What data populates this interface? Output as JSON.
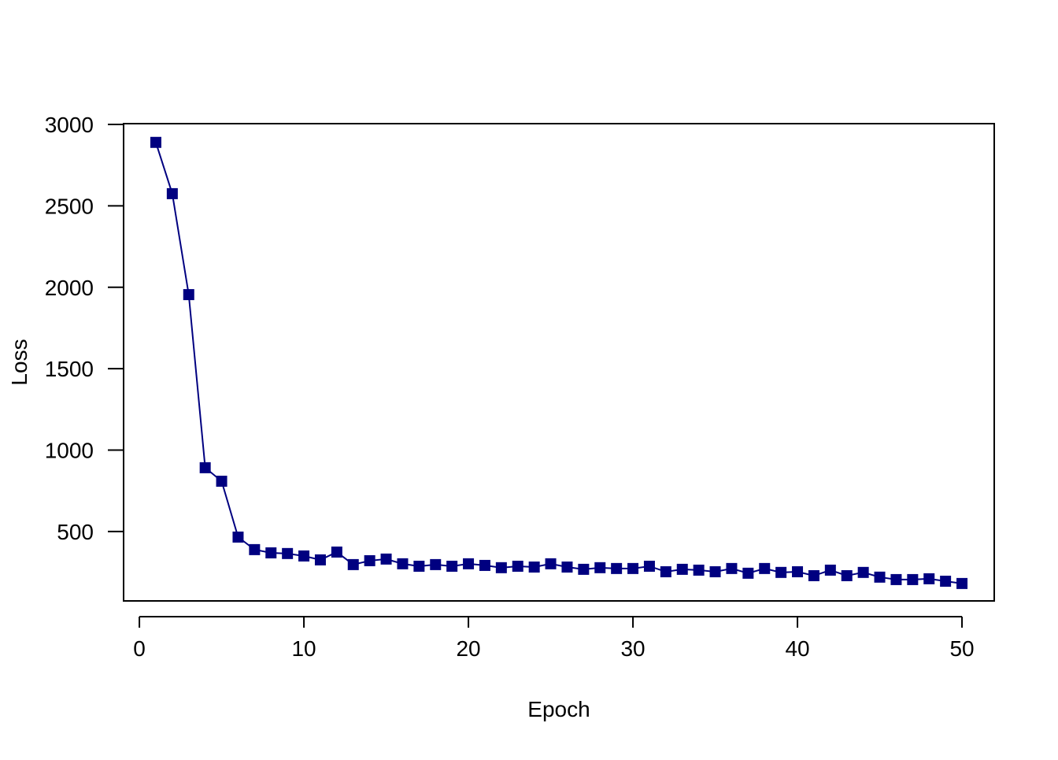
{
  "chart_data": {
    "type": "line",
    "x_label": "Epoch",
    "y_label": "Loss",
    "series": [
      {
        "color": "#000080",
        "x": [
          1,
          2,
          3,
          4,
          5,
          6,
          7,
          8,
          9,
          10,
          11,
          12,
          13,
          14,
          15,
          16,
          17,
          18,
          19,
          20,
          21,
          22,
          23,
          24,
          25,
          26,
          27,
          28,
          29,
          30,
          31,
          32,
          33,
          34,
          35,
          36,
          37,
          38,
          39,
          40,
          41,
          42,
          43,
          44,
          45,
          46,
          47,
          48,
          49,
          50
        ],
        "values": [
          2890,
          2575,
          1955,
          892,
          809,
          466,
          389,
          369,
          365,
          350,
          326,
          374,
          297,
          321,
          331,
          302,
          287,
          297,
          287,
          302,
          292,
          278,
          287,
          282,
          302,
          282,
          268,
          278,
          273,
          273,
          287,
          253,
          268,
          263,
          253,
          273,
          244,
          273,
          249,
          253,
          229,
          263,
          229,
          249,
          220,
          205,
          205,
          210,
          195,
          181
        ]
      }
    ],
    "xlim": [
      -0.96,
      51.96
    ],
    "ylim": [
      74,
      3005
    ],
    "xticks": [
      0,
      10,
      20,
      30,
      40,
      50
    ],
    "yticks": [
      500,
      1000,
      1500,
      2000,
      2500,
      3000
    ],
    "marker": "square"
  }
}
